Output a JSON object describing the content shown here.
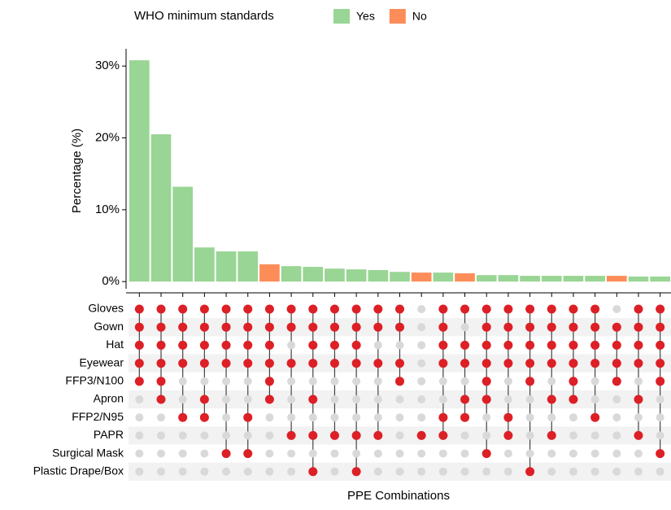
{
  "chart_data": {
    "type": "upset",
    "legend_title": "WHO minimum standards",
    "y_label": "Percentage (%)",
    "x_label": "PPE Combinations",
    "ylim": [
      -1,
      32.4
    ],
    "yticks": [
      {
        "value": 0,
        "label": "0%"
      },
      {
        "value": 10,
        "label": "10%"
      },
      {
        "value": 20,
        "label": "20%"
      },
      {
        "value": 30,
        "label": "30%"
      }
    ],
    "series": [
      {
        "name": "Yes",
        "color": "#99d594",
        "values": [
          30.8,
          20.5,
          13.2,
          4.75,
          4.2,
          4.2,
          null,
          2.15,
          2.05,
          1.8,
          1.7,
          1.6,
          1.35,
          null,
          1.25,
          null,
          0.9,
          0.9,
          0.8,
          0.8,
          0.8,
          0.8,
          null,
          0.7,
          0.7
        ]
      },
      {
        "name": "No",
        "color": "#fc8d59",
        "values": [
          null,
          null,
          null,
          null,
          null,
          null,
          2.4,
          null,
          null,
          null,
          null,
          null,
          null,
          1.25,
          null,
          1.15,
          null,
          null,
          null,
          null,
          null,
          null,
          0.8,
          null,
          null
        ]
      }
    ],
    "sets": [
      "Gloves",
      "Gown",
      "Hat",
      "Eyewear",
      "FFP3/N100",
      "Apron",
      "FFP2/N95",
      "PAPR",
      "Surgical Mask",
      "Plastic Drape/Box"
    ],
    "combinations": [
      [
        0,
        1,
        2,
        3,
        4
      ],
      [
        0,
        1,
        2,
        3,
        4,
        5
      ],
      [
        0,
        1,
        2,
        3,
        6
      ],
      [
        0,
        1,
        2,
        3,
        5,
        6
      ],
      [
        0,
        1,
        2,
        3,
        8
      ],
      [
        0,
        1,
        2,
        3,
        6,
        8
      ],
      [
        0,
        1,
        2,
        3,
        4,
        5
      ],
      [
        0,
        1,
        3,
        7
      ],
      [
        0,
        1,
        2,
        3,
        5,
        7,
        9
      ],
      [
        0,
        1,
        2,
        3,
        7
      ],
      [
        0,
        1,
        2,
        3,
        7,
        9
      ],
      [
        0,
        1,
        3,
        7
      ],
      [
        0,
        1,
        3,
        4
      ],
      [
        7
      ],
      [
        0,
        1,
        2,
        3,
        6,
        7
      ],
      [
        0,
        2,
        3,
        5,
        6
      ],
      [
        0,
        1,
        2,
        3,
        4,
        5,
        8
      ],
      [
        0,
        1,
        2,
        3,
        6,
        7
      ],
      [
        0,
        1,
        2,
        3,
        4,
        9
      ],
      [
        0,
        1,
        2,
        3,
        5,
        7
      ],
      [
        0,
        1,
        2,
        3,
        4,
        5
      ],
      [
        0,
        1,
        2,
        3,
        6
      ],
      [
        1,
        2,
        3,
        4
      ],
      [
        0,
        1,
        2,
        3,
        5,
        7
      ],
      [
        0,
        1,
        2,
        3,
        4,
        8
      ]
    ],
    "dot_color": "#dd1f26"
  }
}
